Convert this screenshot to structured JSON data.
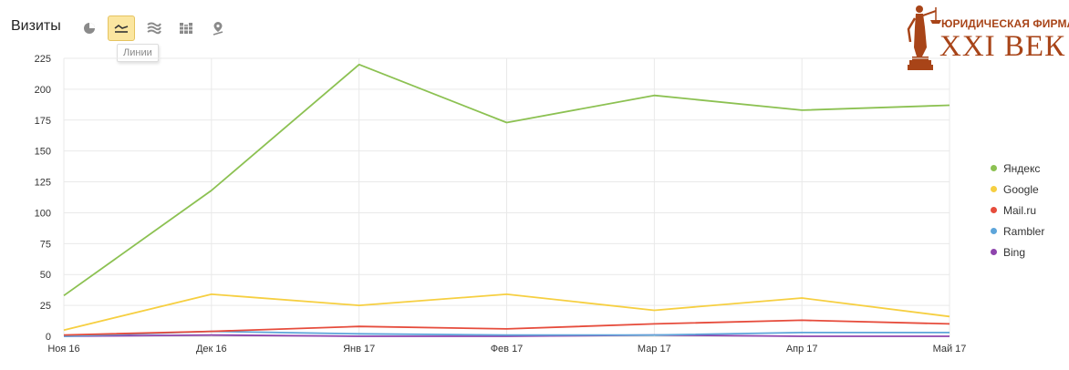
{
  "toolbar": {
    "title": "Визиты",
    "buttons": [
      {
        "icon": "pie-chart-icon"
      },
      {
        "icon": "line-chart-icon",
        "active": true
      },
      {
        "icon": "area-chart-icon"
      },
      {
        "icon": "bar-chart-icon"
      },
      {
        "icon": "map-pin-icon"
      }
    ],
    "tooltip": "Линии",
    "active_color": "#fbe6a0"
  },
  "logo": {
    "top_text": "ЮРИДИЧЕСКАЯ ФИРМА",
    "main_text": "XXI ВЕК",
    "color": "#a84418"
  },
  "chart_data": {
    "type": "line",
    "categories": [
      "Ноя 16",
      "Дек 16",
      "Янв 17",
      "Фев 17",
      "Мар 17",
      "Апр 17",
      "Май 17"
    ],
    "ylim": [
      0,
      225
    ],
    "yticks": [
      "0",
      "25",
      "50",
      "75",
      "100",
      "125",
      "150",
      "175",
      "200",
      "225"
    ],
    "grid": true,
    "legend_position": "right",
    "series": [
      {
        "name": "Яндекс",
        "color": "#8cc152",
        "values": [
          33,
          118,
          220,
          173,
          195,
          183,
          187
        ]
      },
      {
        "name": "Google",
        "color": "#f6cf41",
        "values": [
          5,
          34,
          25,
          34,
          21,
          31,
          16
        ]
      },
      {
        "name": "Mail.ru",
        "color": "#e64c3c",
        "values": [
          1,
          4,
          8,
          6,
          10,
          13,
          10
        ]
      },
      {
        "name": "Rambler",
        "color": "#5da5da",
        "values": [
          0,
          4,
          2,
          1,
          1,
          3,
          3
        ]
      },
      {
        "name": "Bing",
        "color": "#8e44ad",
        "values": [
          0,
          1,
          0,
          0,
          1,
          0,
          0
        ]
      }
    ]
  }
}
